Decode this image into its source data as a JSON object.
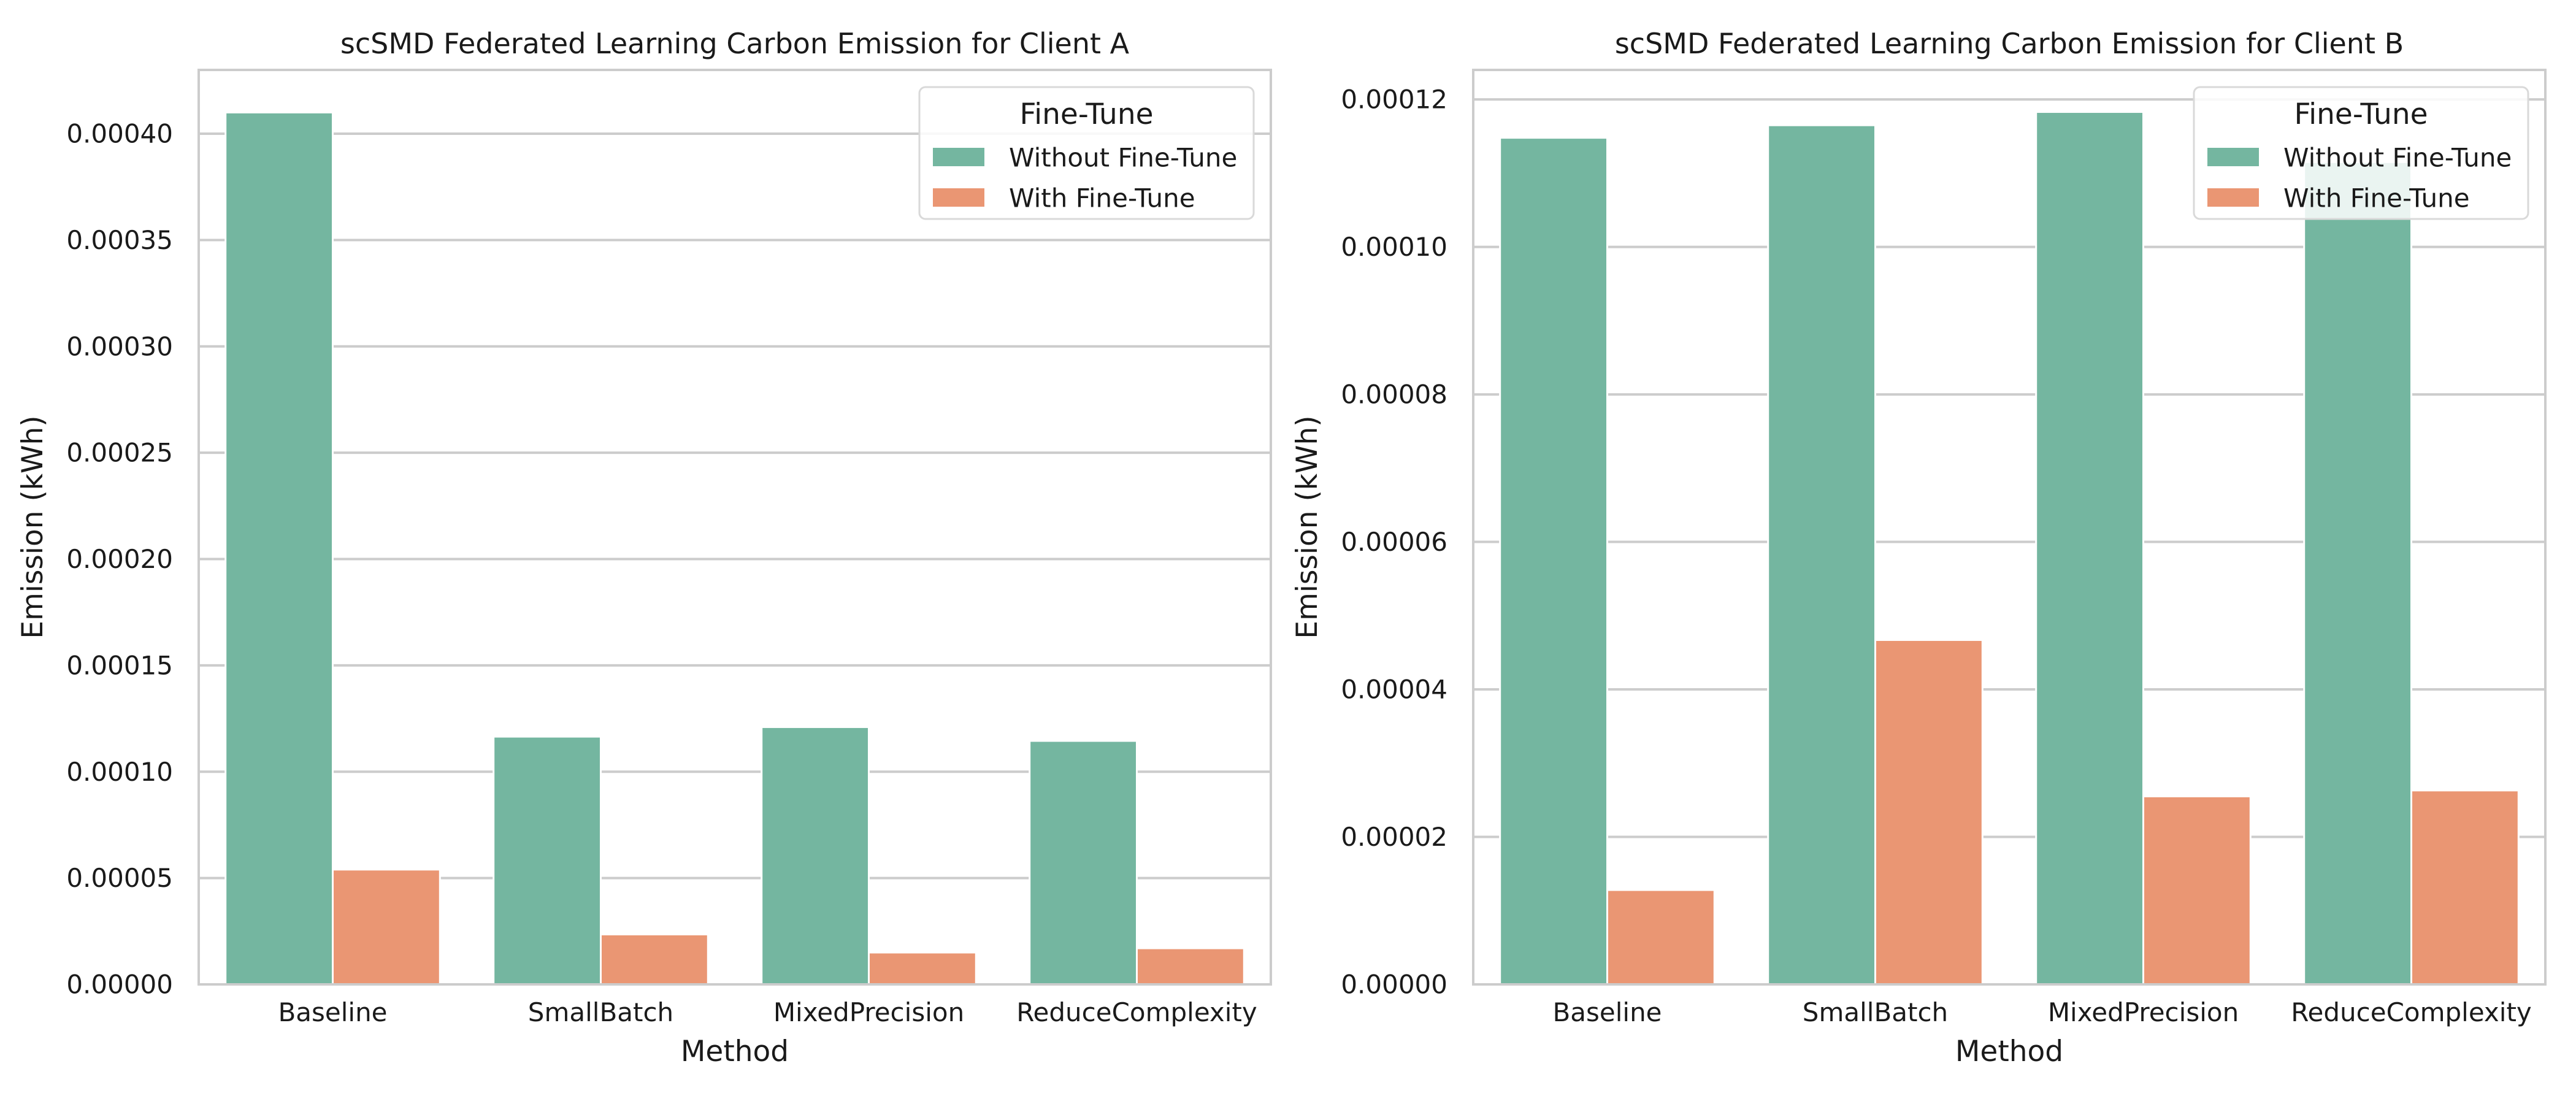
{
  "chart_data": [
    {
      "type": "bar",
      "title": "scSMD Federated Learning Carbon Emission for Client A",
      "xlabel": "Method",
      "ylabel": "Emission (kWh)",
      "categories": [
        "Baseline",
        "SmallBatch",
        "MixedPrecision",
        "ReduceComplexity"
      ],
      "ylim": [
        0,
        0.00043
      ],
      "yticks": [
        "0.00000",
        "0.00005",
        "0.00010",
        "0.00015",
        "0.00020",
        "0.00025",
        "0.00030",
        "0.00035",
        "0.00040"
      ],
      "ytick_values": [
        0,
        5e-05,
        0.0001,
        0.00015,
        0.0002,
        0.00025,
        0.0003,
        0.00035,
        0.0004
      ],
      "grid": "horizontal",
      "legend": {
        "title": "Fine-Tune",
        "placement": "top-right",
        "entries": [
          "Without Fine-Tune",
          "With Fine-Tune"
        ]
      },
      "series": [
        {
          "name": "Without Fine-Tune",
          "color": "#74b6a0",
          "values": [
            0.00041,
            0.0001165,
            0.000121,
            0.0001145
          ]
        },
        {
          "name": "With Fine-Tune",
          "color": "#ea9673",
          "values": [
            5.4e-05,
            2.35e-05,
            1.5e-05,
            1.7e-05
          ]
        }
      ]
    },
    {
      "type": "bar",
      "title": "scSMD Federated Learning Carbon Emission for Client B",
      "xlabel": "Method",
      "ylabel": "Emission (kWh)",
      "categories": [
        "Baseline",
        "SmallBatch",
        "MixedPrecision",
        "ReduceComplexity"
      ],
      "ylim": [
        0,
        0.000124
      ],
      "yticks": [
        "0.00000",
        "0.00002",
        "0.00004",
        "0.00006",
        "0.00008",
        "0.00010",
        "0.00012"
      ],
      "ytick_values": [
        0,
        2e-05,
        4e-05,
        6e-05,
        8e-05,
        0.0001,
        0.00012
      ],
      "grid": "horizontal",
      "legend": {
        "title": "Fine-Tune",
        "placement": "top-right",
        "entries": [
          "Without Fine-Tune",
          "With Fine-Tune"
        ]
      },
      "series": [
        {
          "name": "Without Fine-Tune",
          "color": "#74b6a0",
          "values": [
            0.0001148,
            0.0001165,
            0.0001183,
            0.0001115
          ]
        },
        {
          "name": "With Fine-Tune",
          "color": "#ea9673",
          "values": [
            1.28e-05,
            4.67e-05,
            2.55e-05,
            2.63e-05
          ]
        }
      ]
    }
  ]
}
